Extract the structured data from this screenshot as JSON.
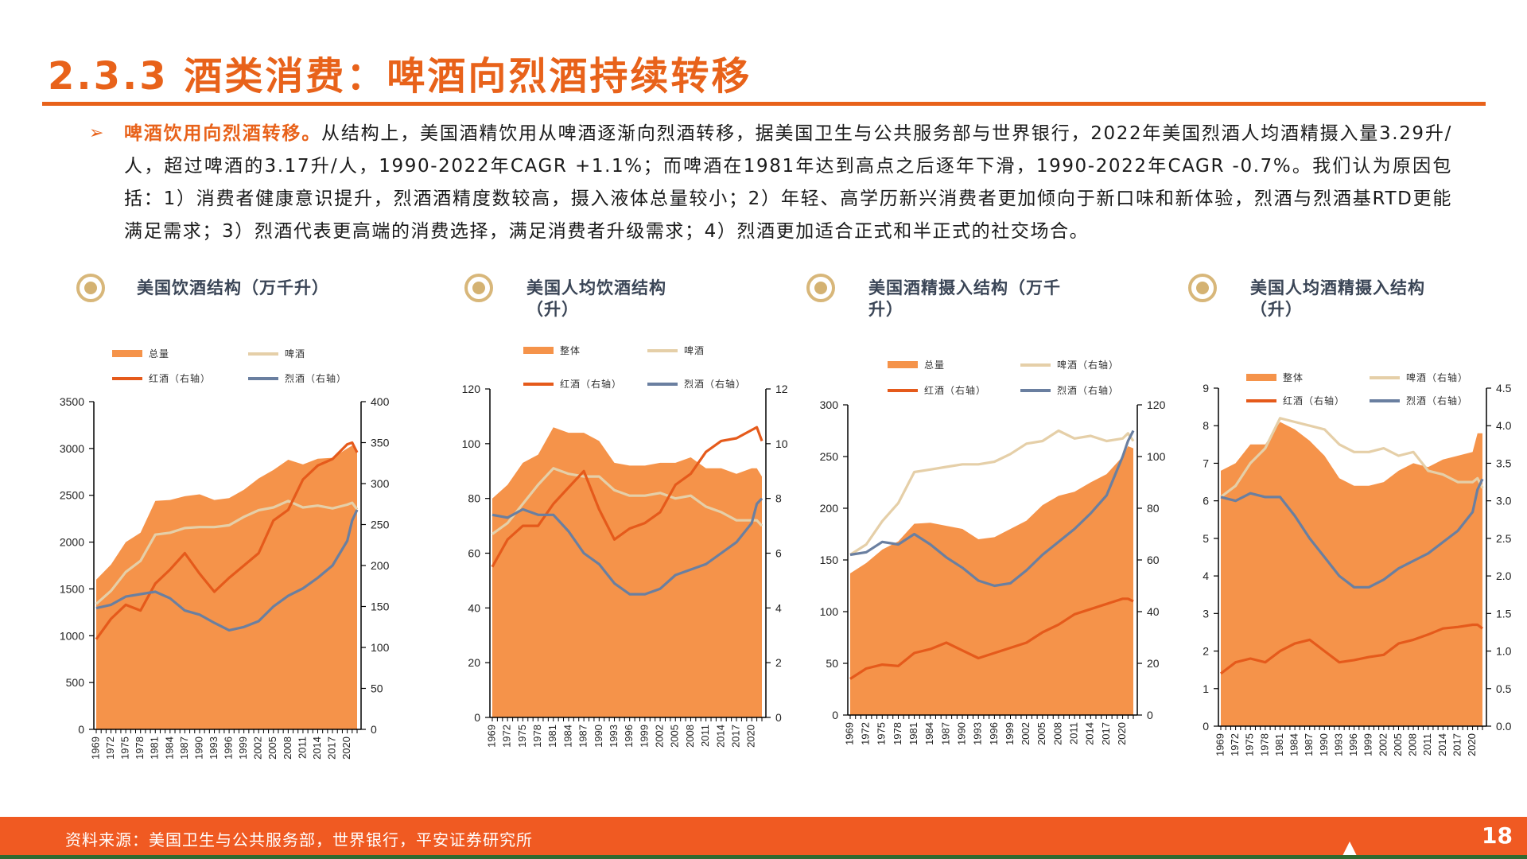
{
  "header": {
    "title": "2.3.3 酒类消费：啤酒向烈酒持续转移"
  },
  "body": {
    "bullet_icon": "arrow-right-icon",
    "bullet": "➢",
    "lead": "啤酒饮用向烈酒转移。",
    "text": "从结构上，美国酒精饮用从啤酒逐渐向烈酒转移，据美国卫生与公共服务部与世界银行，2022年美国烈酒人均酒精摄入量3.29升/人，超过啤酒的3.17升/人，1990-2022年CAGR +1.1%；而啤酒在1981年达到高点之后逐年下滑，1990-2022年CAGR -0.7%。我们认为原因包括：1）消费者健康意识提升，烈酒酒精度数较高，摄入液体总量较小；2）年轻、高学历新兴消费者更加倾向于新口味和新体验，烈酒与烈酒基RTD更能满足需求；3）烈酒代表更高端的消费选择，满足消费者升级需求；4）烈酒更加适合正式和半正式的社交场合。"
  },
  "colors": {
    "accent": "#e8621a",
    "area": "#f5934a",
    "beer": "#e5cfa8",
    "wine": "#e55a1b",
    "spirits": "#6a7fa0",
    "footer": "#f05a22"
  },
  "footer": {
    "source": "资料来源：美国卫生与公共服务部，世界银行，平安证券研究所",
    "page": "18"
  },
  "chart_data": [
    {
      "type": "area+line",
      "title": "美国饮酒结构（万千升）",
      "x": [
        1969,
        1972,
        1975,
        1978,
        1981,
        1984,
        1987,
        1990,
        1993,
        1996,
        1999,
        2002,
        2005,
        2008,
        2011,
        2014,
        2017,
        2020,
        2021,
        2022
      ],
      "xticks": [
        "1969",
        "1972",
        "1975",
        "1978",
        "1981",
        "1984",
        "1987",
        "1990",
        "1993",
        "1996",
        "1999",
        "2002",
        "2005",
        "2008",
        "2011",
        "2014",
        "2017",
        "2020"
      ],
      "ylim_left": [
        0,
        3500
      ],
      "yticks_left": [
        "0",
        "500",
        "1000",
        "1500",
        "2000",
        "2500",
        "3000",
        "3500"
      ],
      "ylim_right": [
        0,
        400
      ],
      "yticks_right": [
        "0",
        "50",
        "100",
        "150",
        "200",
        "250",
        "300",
        "350",
        "400"
      ],
      "series": [
        {
          "name": "总量",
          "kind": "area",
          "axis": "left",
          "color": "#f5934a",
          "values": [
            1600,
            1760,
            2000,
            2100,
            2440,
            2450,
            2490,
            2510,
            2450,
            2470,
            2560,
            2680,
            2770,
            2880,
            2830,
            2890,
            2900,
            3000,
            3030,
            2960
          ]
        },
        {
          "name": "啤酒",
          "kind": "line",
          "axis": "left",
          "color": "#e5cfa8",
          "values": [
            1340,
            1480,
            1680,
            1800,
            2080,
            2100,
            2150,
            2160,
            2160,
            2180,
            2270,
            2340,
            2370,
            2440,
            2370,
            2390,
            2360,
            2400,
            2420,
            2350
          ]
        },
        {
          "name": "红酒（右轴）",
          "kind": "line",
          "axis": "right",
          "color": "#e55a1b",
          "values": [
            110,
            135,
            152,
            145,
            178,
            195,
            215,
            190,
            168,
            185,
            200,
            215,
            255,
            268,
            305,
            322,
            330,
            348,
            350,
            338
          ]
        },
        {
          "name": "烈酒（右轴）",
          "kind": "line",
          "axis": "right",
          "color": "#6a7fa0",
          "values": [
            148,
            152,
            162,
            165,
            168,
            160,
            145,
            140,
            130,
            121,
            125,
            132,
            150,
            163,
            172,
            185,
            200,
            230,
            255,
            268
          ]
        }
      ]
    },
    {
      "type": "area+line",
      "title": "美国人均饮酒结构（升）",
      "x": [
        1969,
        1972,
        1975,
        1978,
        1981,
        1984,
        1987,
        1990,
        1993,
        1996,
        1999,
        2002,
        2005,
        2008,
        2011,
        2014,
        2017,
        2020,
        2021,
        2022
      ],
      "xticks": [
        "1969",
        "1972",
        "1975",
        "1978",
        "1981",
        "1984",
        "1987",
        "1990",
        "1993",
        "1996",
        "1999",
        "2002",
        "2005",
        "2008",
        "2011",
        "2014",
        "2017",
        "2020"
      ],
      "ylim_left": [
        0,
        120
      ],
      "yticks_left": [
        "0",
        "20",
        "40",
        "60",
        "80",
        "100",
        "120"
      ],
      "ylim_right": [
        0,
        12
      ],
      "yticks_right": [
        "0",
        "2",
        "4",
        "6",
        "8",
        "10",
        "12"
      ],
      "series": [
        {
          "name": "整体",
          "kind": "area",
          "axis": "left",
          "color": "#f5934a",
          "values": [
            80,
            85,
            93,
            96,
            106,
            104,
            104,
            101,
            93,
            92,
            92,
            93,
            93,
            95,
            91,
            91,
            89,
            91,
            91,
            88
          ]
        },
        {
          "name": "啤酒",
          "kind": "line",
          "axis": "left",
          "color": "#e5cfa8",
          "values": [
            67,
            71,
            78,
            85,
            91,
            89,
            88,
            88,
            83,
            81,
            81,
            82,
            80,
            81,
            77,
            75,
            72,
            72,
            72,
            70
          ]
        },
        {
          "name": "红酒（右轴）",
          "kind": "line",
          "axis": "right",
          "color": "#e55a1b",
          "values": [
            5.5,
            6.5,
            7.0,
            7.0,
            7.8,
            8.4,
            9.0,
            7.6,
            6.5,
            6.9,
            7.1,
            7.5,
            8.5,
            8.9,
            9.7,
            10.1,
            10.2,
            10.5,
            10.6,
            10.1
          ]
        },
        {
          "name": "烈酒（右轴）",
          "kind": "line",
          "axis": "right",
          "color": "#6a7fa0",
          "values": [
            7.4,
            7.3,
            7.6,
            7.4,
            7.4,
            6.8,
            6.0,
            5.6,
            4.9,
            4.5,
            4.5,
            4.7,
            5.2,
            5.4,
            5.6,
            6.0,
            6.4,
            7.1,
            7.8,
            8.0
          ]
        }
      ]
    },
    {
      "type": "area+line",
      "title": "美国酒精摄入结构（万千升）",
      "x": [
        1969,
        1972,
        1975,
        1978,
        1981,
        1984,
        1987,
        1990,
        1993,
        1996,
        1999,
        2002,
        2005,
        2008,
        2011,
        2014,
        2017,
        2020,
        2021,
        2022
      ],
      "xticks": [
        "1969",
        "1972",
        "1975",
        "1978",
        "1981",
        "1984",
        "1987",
        "1990",
        "1993",
        "1996",
        "1999",
        "2002",
        "2005",
        "2008",
        "2011",
        "2014",
        "2017",
        "2020"
      ],
      "ylim_left": [
        0,
        300
      ],
      "yticks_left": [
        "0",
        "50",
        "100",
        "150",
        "200",
        "250",
        "300"
      ],
      "ylim_right": [
        0,
        120
      ],
      "yticks_right": [
        "0",
        "20",
        "40",
        "60",
        "80",
        "100",
        "120"
      ],
      "series": [
        {
          "name": "总量",
          "kind": "area",
          "axis": "left",
          "color": "#f5934a",
          "values": [
            137,
            147,
            160,
            168,
            185,
            186,
            183,
            180,
            170,
            172,
            180,
            188,
            203,
            212,
            216,
            225,
            233,
            250,
            260,
            258
          ]
        },
        {
          "name": "啤酒（右轴）",
          "kind": "line",
          "axis": "right",
          "color": "#e5cfa8",
          "values": [
            62,
            66,
            75,
            82,
            94,
            95,
            96,
            97,
            97,
            98,
            101,
            105,
            106,
            110,
            107,
            108,
            106,
            107,
            109,
            106
          ]
        },
        {
          "name": "红酒（右轴）",
          "kind": "line",
          "axis": "right",
          "color": "#e55a1b",
          "values": [
            14,
            18,
            19.5,
            19,
            24,
            25.5,
            28,
            25,
            22,
            24,
            26,
            28,
            32,
            35,
            39,
            41,
            43,
            45,
            45,
            44
          ]
        },
        {
          "name": "烈酒（右轴）",
          "kind": "line",
          "axis": "right",
          "color": "#6a7fa0",
          "values": [
            62,
            63,
            67,
            66,
            70,
            66,
            61,
            57,
            52,
            50,
            51,
            56,
            62,
            67,
            72,
            78,
            85,
            100,
            106,
            110
          ]
        }
      ]
    },
    {
      "type": "area+line",
      "title": "美国人均酒精摄入结构（升）",
      "x": [
        1969,
        1972,
        1975,
        1978,
        1981,
        1984,
        1987,
        1990,
        1993,
        1996,
        1999,
        2002,
        2005,
        2008,
        2011,
        2014,
        2017,
        2020,
        2021,
        2022
      ],
      "xticks": [
        "1969",
        "1972",
        "1975",
        "1978",
        "1981",
        "1984",
        "1987",
        "1990",
        "1993",
        "1996",
        "1999",
        "2002",
        "2005",
        "2008",
        "2011",
        "2014",
        "2017",
        "2020"
      ],
      "ylim_left": [
        0,
        9
      ],
      "yticks_left": [
        "0",
        "1",
        "2",
        "3",
        "4",
        "5",
        "6",
        "7",
        "8",
        "9"
      ],
      "ylim_right": [
        0,
        4.5
      ],
      "yticks_right": [
        "0.0",
        "0.5",
        "1.0",
        "1.5",
        "2.0",
        "2.5",
        "3.0",
        "3.5",
        "4.0",
        "4.5"
      ],
      "series": [
        {
          "name": "整体",
          "kind": "area",
          "axis": "left",
          "color": "#f5934a",
          "values": [
            6.8,
            7.0,
            7.5,
            7.5,
            8.1,
            7.9,
            7.6,
            7.2,
            6.6,
            6.4,
            6.4,
            6.5,
            6.8,
            7.0,
            6.9,
            7.1,
            7.2,
            7.3,
            7.8,
            7.8
          ]
        },
        {
          "name": "啤酒（右轴）",
          "kind": "line",
          "axis": "right",
          "color": "#e5cfa8",
          "values": [
            3.05,
            3.2,
            3.5,
            3.7,
            4.1,
            4.05,
            4.0,
            3.95,
            3.75,
            3.65,
            3.65,
            3.7,
            3.6,
            3.65,
            3.4,
            3.35,
            3.25,
            3.25,
            3.3,
            3.17
          ]
        },
        {
          "name": "红酒（右轴）",
          "kind": "line",
          "axis": "right",
          "color": "#e55a1b",
          "values": [
            0.7,
            0.85,
            0.9,
            0.85,
            1.0,
            1.1,
            1.15,
            1.0,
            0.85,
            0.88,
            0.92,
            0.95,
            1.1,
            1.15,
            1.22,
            1.3,
            1.32,
            1.35,
            1.35,
            1.3
          ]
        },
        {
          "name": "烈酒（右轴）",
          "kind": "line",
          "axis": "right",
          "color": "#6a7fa0",
          "values": [
            3.05,
            3.0,
            3.1,
            3.05,
            3.05,
            2.8,
            2.5,
            2.25,
            2.0,
            1.85,
            1.85,
            1.95,
            2.1,
            2.2,
            2.3,
            2.45,
            2.6,
            2.85,
            3.15,
            3.29
          ]
        }
      ]
    }
  ]
}
